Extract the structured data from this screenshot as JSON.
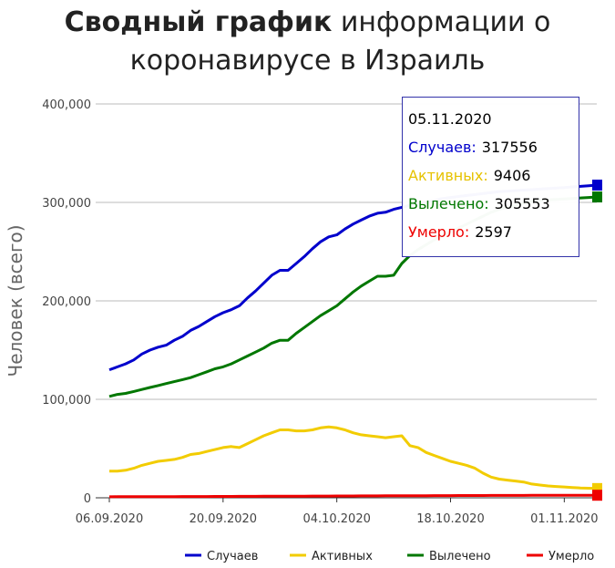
{
  "title": {
    "bold": "Сводный график",
    "rest_line1": "информации о",
    "line2": "коронавирусе в Израиль"
  },
  "colors": {
    "cases": "#0000cc",
    "active": "#f2cc00",
    "recovered": "#007700",
    "deaths": "#ee0000",
    "grid": "#bbbbbb",
    "tooltip_border": "#3333aa"
  },
  "tooltip": {
    "date": "05.11.2020",
    "rows": [
      {
        "label": "Случаев:",
        "value": "317556",
        "color": "#0000cc"
      },
      {
        "label": "Активных:",
        "value": "9406",
        "color": "#e6c200"
      },
      {
        "label": "Вылечено:",
        "value": "305553",
        "color": "#007700"
      },
      {
        "label": "Умерло:",
        "value": "2597",
        "color": "#ee0000"
      }
    ]
  },
  "chart_data": {
    "type": "line",
    "ylabel": "Человек (всего)",
    "xlabel": "",
    "ylim": [
      0,
      400000
    ],
    "yticks": [
      0,
      100000,
      200000,
      300000,
      400000
    ],
    "ytick_labels": [
      "0",
      "100,000",
      "200,000",
      "300,000",
      "400,000"
    ],
    "x_start": "06.09.2020",
    "x_end": "05.11.2020",
    "xtick_labels": [
      "06.09.2020",
      "20.09.2020",
      "04.10.2020",
      "18.10.2020",
      "01.11.2020"
    ],
    "grid": true,
    "legend_position": "bottom-right",
    "x": [
      "06.09.2020",
      "07.09.2020",
      "08.09.2020",
      "09.09.2020",
      "10.09.2020",
      "11.09.2020",
      "12.09.2020",
      "13.09.2020",
      "14.09.2020",
      "15.09.2020",
      "16.09.2020",
      "17.09.2020",
      "18.09.2020",
      "19.09.2020",
      "20.09.2020",
      "21.09.2020",
      "22.09.2020",
      "23.09.2020",
      "24.09.2020",
      "25.09.2020",
      "26.09.2020",
      "27.09.2020",
      "28.09.2020",
      "29.09.2020",
      "30.09.2020",
      "01.10.2020",
      "02.10.2020",
      "03.10.2020",
      "04.10.2020",
      "05.10.2020",
      "06.10.2020",
      "07.10.2020",
      "08.10.2020",
      "09.10.2020",
      "10.10.2020",
      "11.10.2020",
      "12.10.2020",
      "13.10.2020",
      "14.10.2020",
      "15.10.2020",
      "16.10.2020",
      "17.10.2020",
      "18.10.2020",
      "19.10.2020",
      "20.10.2020",
      "21.10.2020",
      "22.10.2020",
      "23.10.2020",
      "24.10.2020",
      "25.10.2020",
      "26.10.2020",
      "27.10.2020",
      "28.10.2020",
      "29.10.2020",
      "30.10.2020",
      "31.10.2020",
      "01.11.2020",
      "02.11.2020",
      "03.11.2020",
      "04.11.2020",
      "05.11.2020"
    ],
    "series": [
      {
        "name": "Случаев",
        "color": "#0000cc",
        "values": [
          130000,
          133000,
          136000,
          140000,
          146000,
          150000,
          153000,
          155000,
          160000,
          164000,
          170000,
          174000,
          179000,
          184000,
          188000,
          191000,
          195000,
          203000,
          210000,
          218000,
          226000,
          231000,
          231000,
          238000,
          245000,
          253000,
          260000,
          265000,
          267000,
          273000,
          278000,
          282000,
          286000,
          289000,
          290000,
          293000,
          295000,
          297000,
          299000,
          300000,
          302000,
          304000,
          305000,
          306000,
          307000,
          308000,
          309000,
          310000,
          311000,
          311500,
          312000,
          312500,
          313000,
          313500,
          314000,
          314500,
          315000,
          315700,
          316300,
          316900,
          317556
        ]
      },
      {
        "name": "Активных",
        "color": "#f2cc00",
        "values": [
          27000,
          27000,
          28000,
          30000,
          33000,
          35000,
          37000,
          38000,
          39000,
          41000,
          44000,
          45000,
          47000,
          49000,
          51000,
          52000,
          51000,
          55000,
          59000,
          63000,
          66000,
          69000,
          69000,
          68000,
          68000,
          69000,
          71000,
          72000,
          71000,
          69000,
          66000,
          64000,
          63000,
          62000,
          61000,
          62000,
          63000,
          53000,
          51000,
          46000,
          43000,
          40000,
          37000,
          35000,
          33000,
          30000,
          25000,
          21000,
          19000,
          18000,
          17000,
          16000,
          14000,
          13000,
          12000,
          11500,
          11000,
          10500,
          10000,
          9700,
          9406
        ]
      },
      {
        "name": "Вылечено",
        "color": "#007700",
        "values": [
          103000,
          105000,
          106000,
          108000,
          110000,
          112000,
          114000,
          116000,
          118000,
          120000,
          122000,
          125000,
          128000,
          131000,
          133000,
          136000,
          140000,
          144000,
          148000,
          152000,
          157000,
          160000,
          160000,
          167000,
          173000,
          179000,
          185000,
          190000,
          195000,
          202000,
          209000,
          215000,
          220000,
          225000,
          225000,
          226000,
          238000,
          246000,
          252000,
          257000,
          262000,
          266000,
          270000,
          274000,
          278000,
          282000,
          286000,
          290000,
          293000,
          295000,
          297000,
          299000,
          301000,
          302000,
          302500,
          303000,
          303500,
          304000,
          304500,
          305000,
          305553
        ]
      },
      {
        "name": "Умерло",
        "color": "#ee0000",
        "values": [
          1050,
          1070,
          1090,
          1110,
          1130,
          1150,
          1170,
          1190,
          1220,
          1250,
          1280,
          1310,
          1340,
          1370,
          1400,
          1430,
          1460,
          1490,
          1520,
          1550,
          1580,
          1610,
          1640,
          1670,
          1700,
          1730,
          1760,
          1790,
          1820,
          1850,
          1880,
          1910,
          1940,
          1970,
          2000,
          2030,
          2060,
          2090,
          2120,
          2150,
          2180,
          2210,
          2240,
          2270,
          2300,
          2330,
          2350,
          2370,
          2390,
          2410,
          2430,
          2450,
          2470,
          2490,
          2510,
          2530,
          2550,
          2565,
          2575,
          2585,
          2597
        ]
      }
    ]
  }
}
